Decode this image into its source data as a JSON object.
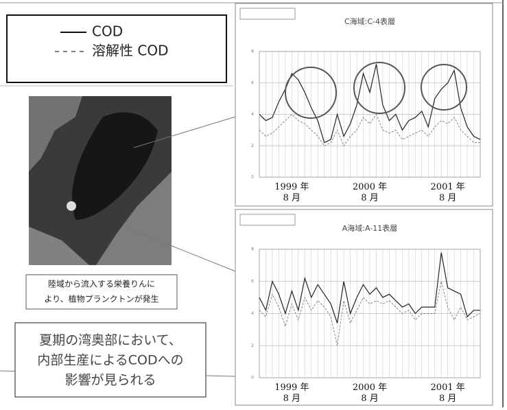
{
  "chart_data": [
    {
      "type": "line",
      "title": "C海域:C-4表層",
      "categories": [
        null,
        null,
        null,
        null,
        null,
        "1999 年\n8 月",
        null,
        null,
        null,
        null,
        null,
        null,
        null,
        null,
        null,
        null,
        null,
        "2000 年\n8 月",
        null,
        null,
        null,
        null,
        null,
        null,
        null,
        null,
        null,
        null,
        null,
        "2001 年\n8 月",
        null,
        null,
        null,
        null,
        null
      ],
      "series": [
        {
          "name": "COD",
          "color": "#222222",
          "values": [
            4.0,
            3.6,
            3.8,
            4.8,
            5.6,
            6.6,
            6.2,
            5.4,
            4.4,
            3.6,
            2.2,
            2.4,
            4.0,
            2.6,
            3.4,
            4.6,
            6.6,
            5.4,
            7.2,
            4.6,
            3.6,
            4.0,
            3.0,
            3.6,
            3.8,
            4.2,
            3.2,
            5.0,
            5.6,
            6.0,
            6.8,
            4.4,
            3.2,
            2.6,
            2.4
          ]
        },
        {
          "name": "溶解性 COD",
          "color": "#777777",
          "values": [
            3.0,
            2.6,
            2.8,
            3.2,
            3.6,
            4.0,
            3.6,
            3.4,
            3.0,
            2.6,
            2.0,
            2.2,
            3.0,
            2.0,
            2.6,
            3.0,
            3.8,
            3.4,
            4.0,
            3.0,
            2.8,
            3.0,
            2.4,
            2.6,
            2.8,
            3.0,
            2.6,
            3.2,
            3.6,
            3.4,
            3.8,
            3.0,
            2.6,
            2.2,
            2.2
          ]
        }
      ],
      "ylim": [
        0,
        8
      ],
      "yticks": [
        0,
        2,
        4,
        6,
        8
      ],
      "grid": true
    },
    {
      "type": "line",
      "title": "A海域:A-11表層",
      "categories": [
        null,
        null,
        null,
        null,
        null,
        "1999 年\n8 月",
        null,
        null,
        null,
        null,
        null,
        null,
        null,
        null,
        null,
        null,
        null,
        "2000 年\n8 月",
        null,
        null,
        null,
        null,
        null,
        null,
        null,
        null,
        null,
        null,
        null,
        "2001 年\n8 月",
        null,
        null,
        null,
        null,
        null
      ],
      "series": [
        {
          "color": "#222222",
          "values": [
            5.0,
            4.2,
            6.0,
            5.2,
            4.0,
            5.4,
            4.2,
            6.2,
            5.0,
            5.8,
            5.2,
            4.6,
            3.4,
            6.0,
            4.0,
            5.0,
            5.8,
            5.2,
            5.6,
            5.0,
            5.2,
            4.8,
            4.4,
            4.6,
            4.0,
            4.4,
            4.4,
            4.4,
            7.8,
            5.6,
            5.4,
            5.2,
            3.8,
            4.2,
            4.2
          ]
        },
        {
          "color": "#777777",
          "values": [
            4.2,
            3.8,
            5.2,
            4.4,
            3.2,
            4.6,
            3.6,
            5.0,
            4.2,
            4.8,
            4.4,
            3.8,
            2.0,
            4.8,
            3.4,
            4.2,
            5.0,
            4.6,
            4.8,
            4.6,
            4.8,
            4.4,
            4.0,
            4.2,
            3.6,
            4.0,
            4.0,
            4.0,
            6.0,
            4.4,
            3.6,
            4.4,
            3.6,
            3.8,
            4.0
          ]
        }
      ],
      "ylim": [
        0,
        8
      ],
      "yticks": [
        0,
        2,
        4,
        6,
        8
      ],
      "grid": true
    }
  ],
  "photo_caption": [
    "陸域から流入する栄養りんに",
    "より、植物プランクトンが発生"
  ],
  "conclusion": [
    "夏期の湾奥部において、",
    "内部生産によるCODへの",
    "影響が見られる"
  ]
}
